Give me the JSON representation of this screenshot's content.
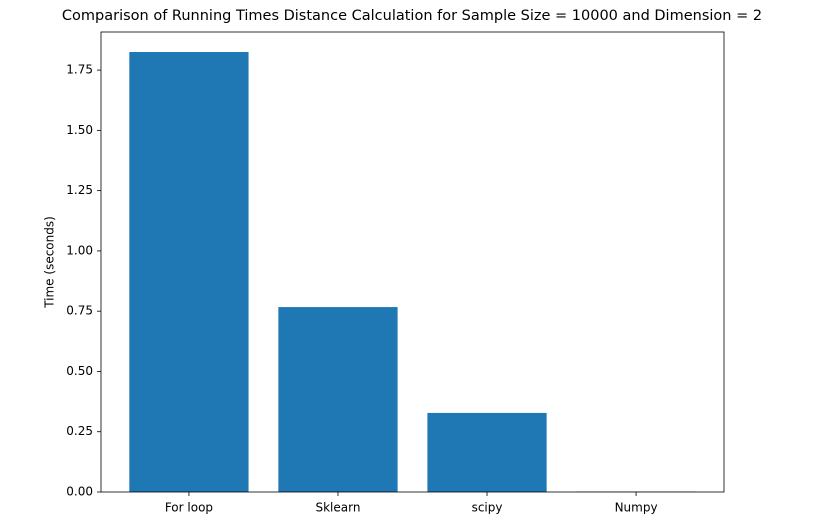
{
  "chart_data": {
    "type": "bar",
    "title": "Comparison of Running Times Distance Calculation for Sample Size = 10000 and Dimension = 2",
    "ylabel": "Time (seconds)",
    "categories": [
      "For loop",
      "Sklearn",
      "scipy",
      "Numpy"
    ],
    "values": [
      1.825,
      0.767,
      0.328,
      0.002
    ],
    "color": "#1f77b4",
    "ylim": [
      0,
      1.908
    ],
    "yticks": [
      {
        "value": 0,
        "label": "0.00"
      },
      {
        "value": 0.25,
        "label": "0.25"
      },
      {
        "value": 0.5,
        "label": "0.50"
      },
      {
        "value": 0.75,
        "label": "0.75"
      },
      {
        "value": 1,
        "label": "1.00"
      },
      {
        "value": 1.25,
        "label": "1.25"
      },
      {
        "value": 1.5,
        "label": "1.50"
      },
      {
        "value": 1.75,
        "label": "1.75"
      }
    ],
    "grid": false
  }
}
